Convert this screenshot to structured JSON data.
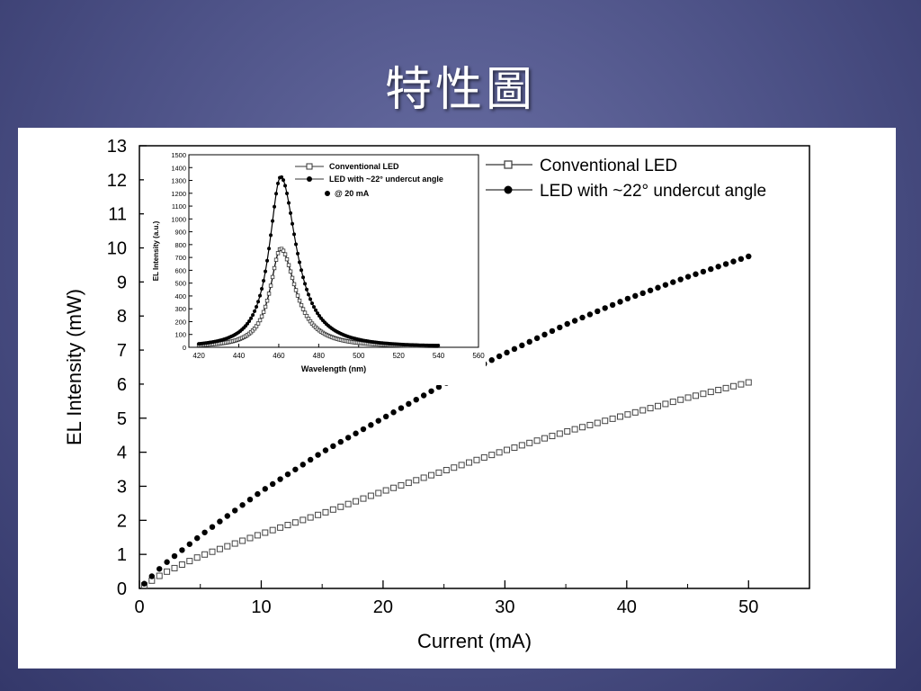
{
  "slide": {
    "title": "特性圖"
  },
  "chart_data": [
    {
      "type": "scatter",
      "xlabel": "Current (mA)",
      "ylabel": "EL Intensity (mW)",
      "xlim": [
        0,
        55
      ],
      "ylim": [
        0,
        13
      ],
      "x_ticks": [
        0,
        10,
        20,
        30,
        40,
        50
      ],
      "y_ticks": [
        0,
        1,
        2,
        3,
        4,
        5,
        6,
        7,
        8,
        9,
        10,
        11,
        12,
        13
      ],
      "grid": false,
      "legend_position": "top-right",
      "series": [
        {
          "name": "Conventional LED",
          "marker": "open-square",
          "points": [
            [
              0,
              0
            ],
            [
              2,
              0.45
            ],
            [
              5,
              0.95
            ],
            [
              10,
              1.6
            ],
            [
              15,
              2.2
            ],
            [
              20,
              2.85
            ],
            [
              25,
              3.45
            ],
            [
              30,
              4.05
            ],
            [
              35,
              4.6
            ],
            [
              40,
              5.1
            ],
            [
              45,
              5.6
            ],
            [
              50,
              6.05
            ]
          ]
        },
        {
          "name": "LED with ~22° undercut angle",
          "marker": "filled-circle",
          "points": [
            [
              0,
              0
            ],
            [
              2,
              0.7
            ],
            [
              5,
              1.55
            ],
            [
              10,
              2.85
            ],
            [
              15,
              4.0
            ],
            [
              20,
              5.0
            ],
            [
              25,
              6.0
            ],
            [
              30,
              6.9
            ],
            [
              35,
              7.75
            ],
            [
              40,
              8.5
            ],
            [
              45,
              9.15
            ],
            [
              50,
              9.75
            ]
          ]
        }
      ]
    },
    {
      "type": "line",
      "inset": true,
      "xlabel": "Wavelength (nm)",
      "ylabel": "EL Intensity (a.u.)",
      "xlim": [
        415,
        560
      ],
      "ylim": [
        0,
        1500
      ],
      "x_ticks": [
        420,
        440,
        460,
        480,
        500,
        520,
        540,
        560
      ],
      "y_ticks": [
        0,
        100,
        200,
        300,
        400,
        500,
        600,
        700,
        800,
        900,
        1000,
        1100,
        1200,
        1300,
        1400,
        1500
      ],
      "annotation": "@ 20 mA",
      "legend_position": "top",
      "series": [
        {
          "name": "Conventional LED",
          "marker": "open-square",
          "peak_wavelength": 461,
          "peak_value": 760,
          "sigma_left": 6.5,
          "sigma_right": 9.0
        },
        {
          "name": "LED with ~22° undercut angle",
          "marker": "filled-circle",
          "peak_wavelength": 461,
          "peak_value": 1320,
          "sigma_left": 7.0,
          "sigma_right": 9.5
        }
      ]
    }
  ]
}
